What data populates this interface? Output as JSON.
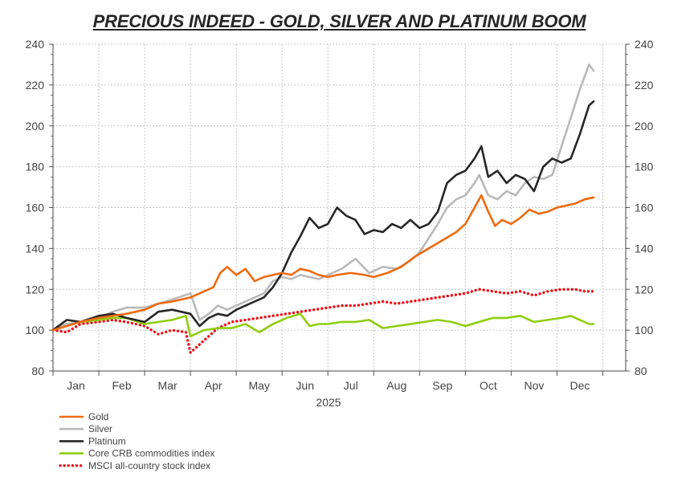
{
  "chart_data": {
    "type": "line",
    "title": "PRECIOUS INDEED - GOLD, SILVER AND PLATINUM BOOM",
    "xlabel": "2025",
    "ylabel": "",
    "ylim": [
      80,
      240
    ],
    "y_ticks": [
      80,
      100,
      120,
      140,
      160,
      180,
      200,
      220,
      240
    ],
    "grid": true,
    "legend_position": "bottom-left",
    "x_range": [
      0,
      12.5
    ],
    "categories": [
      "Jan",
      "Feb",
      "Mar",
      "Apr",
      "May",
      "Jun",
      "Jul",
      "Aug",
      "Sep",
      "Oct",
      "Nov",
      "Dec"
    ],
    "series": [
      {
        "name": "Gold",
        "color": "#ee6b10",
        "style": "solid",
        "x": [
          0,
          0.3,
          0.6,
          1.0,
          1.3,
          1.6,
          2.0,
          2.3,
          2.6,
          3.0,
          3.3,
          3.5,
          3.65,
          3.8,
          4.0,
          4.2,
          4.4,
          4.6,
          4.8,
          5.0,
          5.2,
          5.4,
          5.6,
          5.8,
          6.0,
          6.2,
          6.5,
          6.8,
          7.0,
          7.3,
          7.6,
          7.9,
          8.2,
          8.5,
          8.8,
          9.0,
          9.2,
          9.35,
          9.5,
          9.65,
          9.8,
          10.0,
          10.2,
          10.4,
          10.6,
          10.8,
          11.0,
          11.2,
          11.4,
          11.6,
          11.8
        ],
        "values": [
          100,
          102,
          104,
          106,
          107,
          108,
          110,
          113,
          114,
          116,
          119,
          121,
          128,
          131,
          127,
          130,
          124,
          126,
          127,
          128,
          127,
          130,
          129,
          127,
          126,
          127,
          128,
          127,
          126,
          128,
          131,
          136,
          140,
          144,
          148,
          152,
          160,
          166,
          158,
          151,
          154,
          152,
          155,
          159,
          157,
          158,
          160,
          161,
          162,
          164,
          165
        ]
      },
      {
        "name": "Silver",
        "color": "#b9b9b9",
        "style": "solid",
        "x": [
          0,
          0.3,
          0.6,
          1.0,
          1.3,
          1.6,
          2.0,
          2.3,
          2.6,
          3.0,
          3.2,
          3.4,
          3.6,
          3.8,
          4.0,
          4.2,
          4.4,
          4.6,
          4.8,
          5.0,
          5.2,
          5.4,
          5.6,
          5.8,
          6.0,
          6.3,
          6.6,
          6.9,
          7.2,
          7.5,
          7.8,
          8.0,
          8.2,
          8.4,
          8.6,
          8.8,
          9.0,
          9.2,
          9.3,
          9.5,
          9.7,
          9.9,
          10.1,
          10.3,
          10.5,
          10.7,
          10.9,
          11.1,
          11.3,
          11.5,
          11.7,
          11.8
        ],
        "values": [
          100,
          103,
          104,
          106,
          109,
          111,
          111,
          113,
          115,
          118,
          105,
          108,
          112,
          110,
          112,
          114,
          116,
          118,
          124,
          126,
          125,
          127,
          126,
          125,
          127,
          130,
          135,
          128,
          131,
          130,
          134,
          138,
          145,
          152,
          160,
          164,
          166,
          172,
          176,
          166,
          164,
          168,
          166,
          172,
          175,
          174,
          176,
          190,
          204,
          218,
          230,
          227
        ]
      },
      {
        "name": "Platinum",
        "color": "#262626",
        "style": "solid",
        "x": [
          0,
          0.3,
          0.6,
          1.0,
          1.3,
          1.6,
          2.0,
          2.3,
          2.6,
          3.0,
          3.2,
          3.4,
          3.6,
          3.8,
          4.0,
          4.2,
          4.4,
          4.6,
          4.8,
          5.0,
          5.2,
          5.4,
          5.6,
          5.8,
          6.0,
          6.2,
          6.4,
          6.6,
          6.8,
          7.0,
          7.2,
          7.4,
          7.6,
          7.8,
          8.0,
          8.2,
          8.4,
          8.6,
          8.8,
          9.0,
          9.2,
          9.35,
          9.5,
          9.7,
          9.9,
          10.1,
          10.3,
          10.5,
          10.7,
          10.9,
          11.1,
          11.3,
          11.5,
          11.7,
          11.8
        ],
        "values": [
          100,
          105,
          104,
          107,
          108,
          106,
          104,
          109,
          110,
          108,
          102,
          106,
          108,
          107,
          110,
          112,
          114,
          116,
          121,
          128,
          138,
          146,
          155,
          150,
          152,
          160,
          156,
          154,
          147,
          149,
          148,
          152,
          150,
          154,
          150,
          152,
          158,
          172,
          176,
          178,
          184,
          190,
          175,
          178,
          172,
          176,
          174,
          168,
          180,
          184,
          182,
          184,
          196,
          210,
          212
        ]
      },
      {
        "name": "Core CRB commodities index",
        "color": "#8fcd0e",
        "style": "solid",
        "x": [
          0,
          0.3,
          0.6,
          1.0,
          1.3,
          1.6,
          2.0,
          2.3,
          2.6,
          2.9,
          3.0,
          3.1,
          3.3,
          3.6,
          3.9,
          4.2,
          4.5,
          4.8,
          5.1,
          5.4,
          5.6,
          5.8,
          6.0,
          6.3,
          6.6,
          6.9,
          7.2,
          7.5,
          7.8,
          8.1,
          8.4,
          8.7,
          9.0,
          9.3,
          9.6,
          9.9,
          10.2,
          10.5,
          10.8,
          11.1,
          11.3,
          11.5,
          11.7,
          11.8
        ],
        "values": [
          100,
          103,
          104,
          105,
          106,
          106,
          103,
          104,
          105,
          107,
          97,
          98,
          100,
          101,
          101,
          103,
          99,
          103,
          106,
          108,
          102,
          103,
          103,
          104,
          104,
          105,
          101,
          102,
          103,
          104,
          105,
          104,
          102,
          104,
          106,
          106,
          107,
          104,
          105,
          106,
          107,
          105,
          103,
          103
        ]
      },
      {
        "name": "MSCI all-country stock index",
        "color": "#e8141c",
        "style": "dotted",
        "x": [
          0,
          0.3,
          0.6,
          1.0,
          1.3,
          1.6,
          2.0,
          2.3,
          2.6,
          2.9,
          3.0,
          3.1,
          3.3,
          3.6,
          3.9,
          4.2,
          4.5,
          4.8,
          5.1,
          5.4,
          5.7,
          6.0,
          6.3,
          6.6,
          6.9,
          7.2,
          7.5,
          7.8,
          8.1,
          8.4,
          8.7,
          9.0,
          9.3,
          9.6,
          9.9,
          10.2,
          10.5,
          10.8,
          11.1,
          11.4,
          11.6,
          11.8
        ],
        "values": [
          100,
          99,
          103,
          104,
          105,
          104,
          102,
          98,
          100,
          99,
          89,
          91,
          95,
          101,
          104,
          105,
          106,
          107,
          108,
          109,
          110,
          111,
          112,
          112,
          113,
          114,
          113,
          114,
          115,
          116,
          117,
          118,
          120,
          119,
          118,
          119,
          117,
          119,
          120,
          120,
          119,
          119
        ]
      }
    ]
  }
}
